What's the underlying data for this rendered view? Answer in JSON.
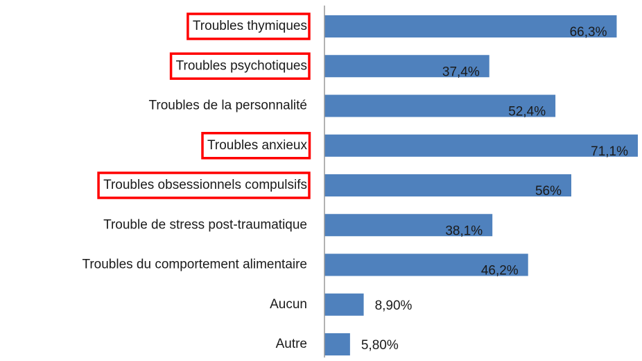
{
  "chart_data": {
    "type": "bar",
    "orientation": "horizontal",
    "categories": [
      "Troubles thymiques",
      "Troubles psychotiques",
      "Troubles de la personnalité",
      "Troubles anxieux",
      "Troubles obsessionnels compulsifs",
      "Trouble de stress post-traumatique",
      "Troubles du comportement alimentaire",
      "Aucun",
      "Autre"
    ],
    "values": [
      66.3,
      37.4,
      52.4,
      71.1,
      56,
      38.1,
      46.2,
      8.9,
      5.8
    ],
    "value_labels": [
      "66,3%",
      "37,4%",
      "52,4%",
      "71,1%",
      "56%",
      "38,1%",
      "46,2%",
      "8,90%",
      "5,80%"
    ],
    "highlighted": [
      true,
      true,
      false,
      true,
      true,
      false,
      false,
      false,
      false
    ],
    "color": "#4f81bd",
    "highlight_color": "#ff0000"
  }
}
